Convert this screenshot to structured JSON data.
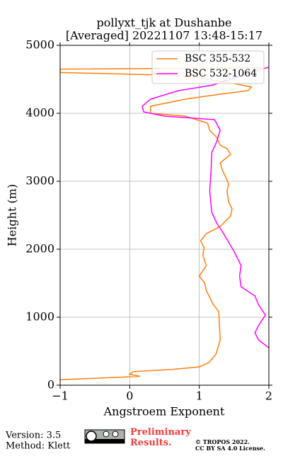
{
  "chart_data": {
    "type": "line",
    "title": "pollyxt_tjk at Dushanbe",
    "subtitle": "[Averaged] 20221107 13:48-15:17",
    "x_label": "Angstroem Exponent",
    "y_label": "Height (m)",
    "xlim": [
      -1,
      2
    ],
    "ylim": [
      0,
      5000
    ],
    "xticks": [
      {
        "value": -1,
        "label": "−1"
      },
      0,
      1,
      2
    ],
    "yticks": [
      0,
      1000,
      2000,
      3000,
      4000,
      5000
    ],
    "grid": true,
    "legend": "upper right",
    "series": [
      {
        "name": "BSC 355-532",
        "color": "#ff7f0e",
        "heights": [
          80,
          130,
          160,
          200,
          230,
          270,
          333,
          458,
          667,
          1083,
          1188,
          1292,
          1396,
          1500,
          1604,
          1760,
          1917,
          2021,
          2125,
          2229,
          2333,
          2490,
          2594,
          2698,
          2854,
          2958,
          3063,
          3167,
          3271,
          3396,
          3479,
          3531,
          3646,
          3750,
          3854,
          3958,
          4000,
          4104,
          4208,
          4281,
          4333,
          4385,
          4438,
          4521,
          4560,
          4600,
          4650,
          4670
        ],
        "values": [
          -1.0,
          0.15,
          0.0,
          0.05,
          0.6,
          1.0,
          1.14,
          1.24,
          1.3,
          1.28,
          1.2,
          1.15,
          1.1,
          1.08,
          1.0,
          1.1,
          1.05,
          1.07,
          1.02,
          1.1,
          1.3,
          1.45,
          1.47,
          1.42,
          1.4,
          1.42,
          1.38,
          1.33,
          1.3,
          1.45,
          1.4,
          1.3,
          1.25,
          1.15,
          1.12,
          0.8,
          0.3,
          0.3,
          0.8,
          1.3,
          1.7,
          1.75,
          1.5,
          1.0,
          0.6,
          -1.0,
          -1.0,
          1.9
        ]
      },
      {
        "name": "BSC 532-1064",
        "color": "#ff00ff",
        "heights": [
          550,
          667,
          771,
          875,
          1031,
          1188,
          1313,
          1448,
          1604,
          1760,
          1969,
          2229,
          2385,
          2542,
          2854,
          3167,
          3427,
          3583,
          3750,
          3906,
          3958,
          4021,
          4104,
          4208,
          4333,
          4417,
          4521,
          4625,
          4677
        ],
        "values": [
          2.0,
          1.85,
          1.8,
          1.85,
          1.95,
          1.85,
          1.8,
          1.6,
          1.58,
          1.6,
          1.5,
          1.35,
          1.25,
          1.18,
          1.15,
          1.17,
          1.18,
          1.25,
          1.3,
          1.22,
          0.5,
          0.2,
          0.18,
          0.3,
          0.7,
          1.2,
          1.5,
          1.8,
          2.0
        ]
      }
    ]
  },
  "footer": {
    "version": "Version: 3.5",
    "method": "Method: Klett",
    "preliminary": "Preliminary Results.",
    "copyright": "© TROPOS 2022.",
    "license": "CC BY SA 4.0 License."
  }
}
